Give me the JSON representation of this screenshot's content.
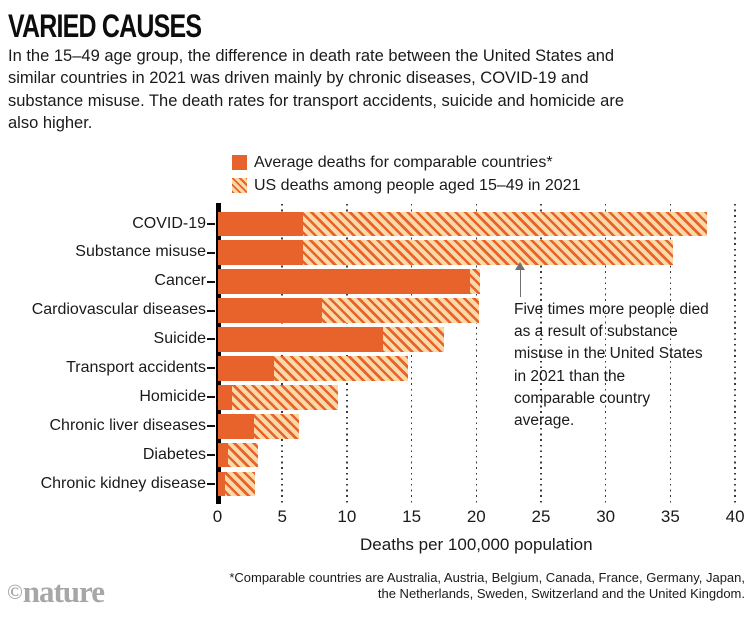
{
  "header": {
    "title": "VARIED CAUSES",
    "intro": "In the 15–49 age group, the difference in death rate between the United States and similar countries in 2021 was driven mainly by chronic diseases, COVID-19 and substance misuse. The death rates for transport accidents, suicide and homicide are also higher."
  },
  "legend": {
    "items": [
      {
        "swatch": "solid",
        "label": "Average deaths for comparable countries*"
      },
      {
        "swatch": "hatch",
        "label": "US deaths among people aged 15–49 in 2021"
      }
    ]
  },
  "chart_data": {
    "type": "bar",
    "orientation": "horizontal",
    "title": "VARIED CAUSES",
    "xlabel": "Deaths per 100,000 population",
    "xlim": [
      0,
      40
    ],
    "xticks": [
      0,
      5,
      10,
      15,
      20,
      25,
      30,
      35,
      40
    ],
    "grid": "dotted-vertical",
    "legend_position": "top",
    "categories": [
      "COVID-19",
      "Substance misuse",
      "Cancer",
      "Cardiovascular diseases",
      "Suicide",
      "Transport accidents",
      "Homicide",
      "Chronic liver diseases",
      "Diabetes",
      "Chronic kidney disease"
    ],
    "series": [
      {
        "name": "Average deaths for comparable countries*",
        "style": "solid",
        "values": [
          6.6,
          6.6,
          19.5,
          8.1,
          12.8,
          4.4,
          1.1,
          2.8,
          0.8,
          0.6
        ]
      },
      {
        "name": "US deaths among people aged 15–49 in 2021",
        "style": "hatched",
        "values": [
          37.8,
          35.2,
          20.3,
          20.2,
          17.5,
          14.7,
          9.3,
          6.3,
          3.1,
          2.9
        ]
      }
    ],
    "annotation": {
      "text": "Five times more people died as a result of substance misuse in the United States in 2021 than the comparable country average.",
      "points_to": "Substance misuse"
    }
  },
  "footnote": "*Comparable countries are Australia, Austria, Belgium, Canada, France, Germany, Japan, the Netherlands, Sweden, Switzerland and the United Kingdom.",
  "logo": {
    "symbol": "©",
    "word": "nature"
  },
  "colors": {
    "accent_orange": "#e8622c",
    "hatch_background": "#f9d9a8",
    "text": "#1a1a1a",
    "axis": "#000000",
    "gridline": "#3c3c3c",
    "arrow": "#707070",
    "logo_gray": "#a7a7a7"
  }
}
